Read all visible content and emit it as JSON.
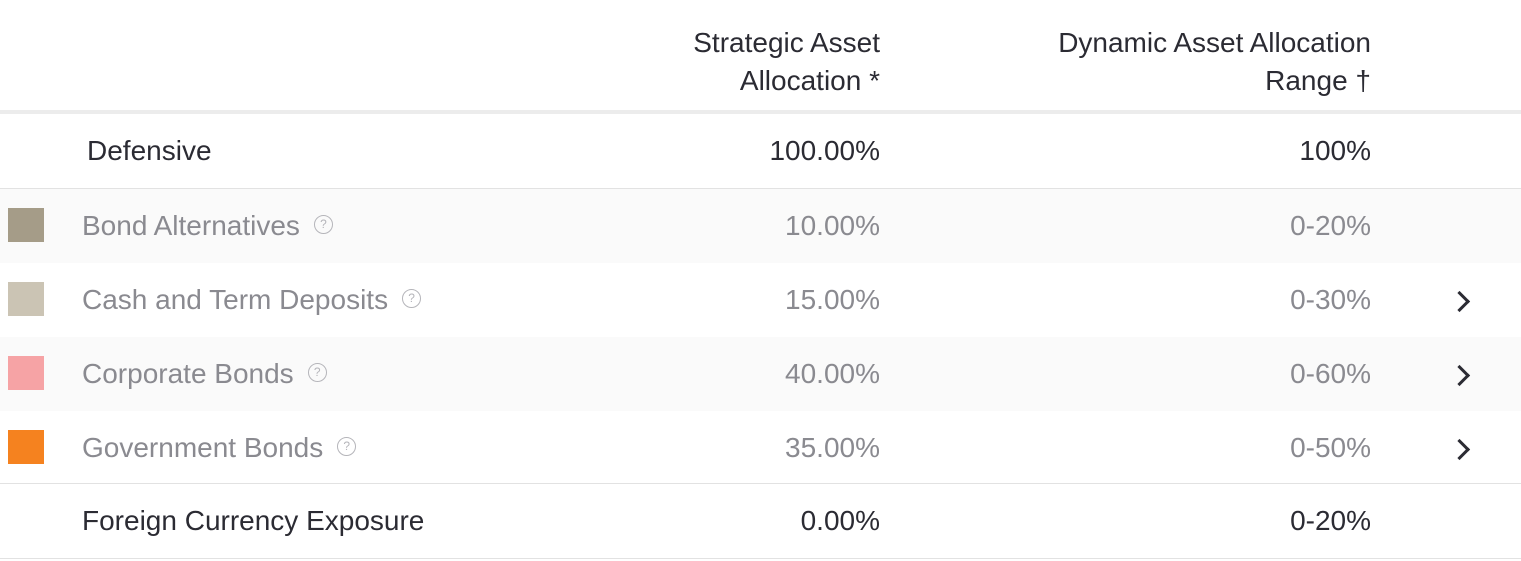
{
  "header": {
    "strategic": "Strategic Asset\nAllocation *",
    "dynamic": "Dynamic Asset Allocation\nRange †"
  },
  "group": {
    "label": "Defensive",
    "strategic": "100.00%",
    "dynamic": "100%"
  },
  "assets": [
    {
      "label": "Bond Alternatives",
      "strategic": "10.00%",
      "dynamic": "0-20%",
      "color": "#a59c88",
      "expandable": false
    },
    {
      "label": "Cash and Term Deposits",
      "strategic": "15.00%",
      "dynamic": "0-30%",
      "color": "#cbc4b4",
      "expandable": true
    },
    {
      "label": "Corporate Bonds",
      "strategic": "40.00%",
      "dynamic": "0-60%",
      "color": "#f6a3a5",
      "expandable": true
    },
    {
      "label": "Government Bonds",
      "strategic": "35.00%",
      "dynamic": "0-50%",
      "color": "#f5821f",
      "expandable": true
    }
  ],
  "help_icon_glyph": "?",
  "footer": {
    "label": "Foreign Currency Exposure",
    "strategic": "0.00%",
    "dynamic": "0-20%"
  }
}
